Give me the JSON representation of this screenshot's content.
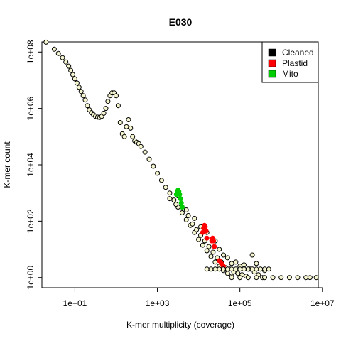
{
  "chart_data": {
    "type": "scatter",
    "title": "E030",
    "xlabel": "K-mer multiplicity (coverage)",
    "ylabel": "K-mer count",
    "log_x": true,
    "log_y": true,
    "xlim_log10": [
      0.2,
      6.9
    ],
    "ylim_log10": [
      -0.36,
      8.36
    ],
    "x_ticks": [
      {
        "exp": 1,
        "label": "1e+01"
      },
      {
        "exp": 3,
        "label": "1e+03"
      },
      {
        "exp": 5,
        "label": "1e+05"
      },
      {
        "exp": 7,
        "label": "1e+07"
      }
    ],
    "y_ticks": [
      {
        "exp": 0,
        "label": "1e+00"
      },
      {
        "exp": 2,
        "label": "1e+02"
      },
      {
        "exp": 4,
        "label": "1e+04"
      },
      {
        "exp": 6,
        "label": "1e+06"
      },
      {
        "exp": 8,
        "label": "1e+08"
      }
    ],
    "legend": {
      "position": "top-right",
      "entries": [
        {
          "label": "Cleaned",
          "color": "#000000"
        },
        {
          "label": "Plastid",
          "color": "#ff0000"
        },
        {
          "label": "Mito",
          "color": "#00cd00"
        }
      ]
    },
    "marker": "open-circle",
    "series": [
      {
        "name": "Cleaned",
        "color": "#000000",
        "points_log10": [
          [
            0.3,
            8.35
          ],
          [
            0.5,
            8.1
          ],
          [
            0.6,
            7.95
          ],
          [
            0.7,
            7.8
          ],
          [
            0.78,
            7.65
          ],
          [
            0.85,
            7.5
          ],
          [
            0.9,
            7.35
          ],
          [
            0.95,
            7.2
          ],
          [
            1.0,
            7.05
          ],
          [
            1.05,
            6.9
          ],
          [
            1.1,
            6.75
          ],
          [
            1.15,
            6.6
          ],
          [
            1.2,
            6.45
          ],
          [
            1.25,
            6.3
          ],
          [
            1.3,
            6.1
          ],
          [
            1.35,
            5.95
          ],
          [
            1.4,
            5.85
          ],
          [
            1.45,
            5.78
          ],
          [
            1.5,
            5.72
          ],
          [
            1.55,
            5.69
          ],
          [
            1.6,
            5.68
          ],
          [
            1.65,
            5.72
          ],
          [
            1.7,
            5.83
          ],
          [
            1.75,
            6.0
          ],
          [
            1.8,
            6.25
          ],
          [
            1.85,
            6.45
          ],
          [
            1.9,
            6.55
          ],
          [
            1.95,
            6.55
          ],
          [
            2.0,
            6.45
          ],
          [
            2.05,
            6.1
          ],
          [
            2.1,
            5.5
          ],
          [
            2.15,
            5.1
          ],
          [
            2.2,
            5.0
          ],
          [
            2.25,
            5.35
          ],
          [
            2.3,
            5.6
          ],
          [
            2.35,
            5.3
          ],
          [
            2.4,
            5.0
          ],
          [
            2.45,
            4.85
          ],
          [
            2.5,
            4.8
          ],
          [
            2.55,
            4.75
          ],
          [
            2.6,
            4.65
          ],
          [
            2.7,
            4.45
          ],
          [
            2.8,
            4.2
          ],
          [
            2.9,
            3.95
          ],
          [
            3.0,
            3.7
          ],
          [
            3.1,
            3.45
          ],
          [
            3.2,
            3.2
          ],
          [
            3.3,
            3.0
          ],
          [
            3.4,
            2.75
          ],
          [
            3.5,
            2.5
          ],
          [
            3.6,
            2.3
          ],
          [
            3.7,
            2.05
          ],
          [
            3.8,
            1.85
          ],
          [
            3.9,
            1.6
          ],
          [
            4.0,
            1.35
          ],
          [
            4.1,
            1.15
          ],
          [
            4.2,
            0.95
          ],
          [
            4.3,
            0.75
          ],
          [
            4.4,
            0.55
          ],
          [
            4.5,
            0.4
          ],
          [
            4.6,
            0.25
          ],
          [
            4.7,
            0.15
          ],
          [
            4.8,
            0.05
          ],
          [
            3.5,
            2.9
          ],
          [
            3.6,
            2.5
          ],
          [
            3.75,
            2.2
          ],
          [
            3.85,
            1.9
          ],
          [
            3.95,
            1.7
          ],
          [
            4.05,
            1.5
          ],
          [
            4.15,
            1.3
          ],
          [
            4.25,
            1.1
          ],
          [
            4.35,
            0.9
          ],
          [
            4.45,
            0.7
          ],
          [
            4.55,
            0.55
          ],
          [
            4.65,
            0.35
          ],
          [
            4.75,
            0.3
          ],
          [
            4.85,
            0.2
          ],
          [
            4.95,
            0.15
          ],
          [
            5.05,
            0.1
          ],
          [
            5.15,
            0.05
          ],
          [
            5.25,
            0.3
          ],
          [
            5.35,
            0.2
          ],
          [
            5.45,
            0.1
          ],
          [
            5.55,
            0.0
          ],
          [
            4.6,
            0.8
          ],
          [
            4.9,
            0.55
          ],
          [
            5.1,
            0.45
          ],
          [
            5.3,
            0.8
          ],
          [
            5.4,
            0.5
          ],
          [
            3.3,
            2.8
          ],
          [
            3.45,
            2.6
          ],
          [
            3.7,
            2.4
          ],
          [
            3.9,
            2.1
          ],
          [
            4.05,
            1.8
          ],
          [
            4.2,
            1.6
          ],
          [
            4.4,
            1.3
          ],
          [
            4.5,
            1.0
          ],
          [
            4.7,
            0.7
          ],
          [
            4.8,
            0.5
          ],
          [
            5.0,
            0.4
          ],
          [
            5.2,
            0.3
          ],
          [
            5.6,
            0.25
          ]
        ]
      },
      {
        "name": "Plastid",
        "color": "#ff0000",
        "points_log10": [
          [
            4.1,
            1.6
          ],
          [
            4.12,
            1.75
          ],
          [
            4.14,
            1.85
          ],
          [
            4.16,
            1.8
          ],
          [
            4.18,
            1.65
          ],
          [
            4.2,
            1.4
          ],
          [
            4.32,
            1.3
          ],
          [
            4.34,
            1.4
          ],
          [
            4.36,
            1.3
          ],
          [
            4.38,
            1.1
          ],
          [
            4.5,
            0.6
          ],
          [
            4.55,
            0.5
          ],
          [
            4.6,
            0.4
          ]
        ]
      },
      {
        "name": "Mito",
        "color": "#00cd00",
        "points_log10": [
          [
            3.46,
            2.95
          ],
          [
            3.48,
            3.05
          ],
          [
            3.5,
            3.1
          ],
          [
            3.52,
            3.05
          ],
          [
            3.54,
            2.95
          ],
          [
            3.56,
            2.8
          ],
          [
            3.58,
            2.65
          ],
          [
            3.6,
            2.5
          ]
        ]
      },
      {
        "name": "",
        "color": "#000000",
        "note_ref": "baseline",
        "points_log10": [
          [
            4.2,
            0.3
          ],
          [
            4.3,
            0.3
          ],
          [
            4.4,
            0.3
          ],
          [
            4.5,
            0.3
          ],
          [
            4.6,
            0.3
          ],
          [
            4.7,
            0.3
          ],
          [
            4.8,
            0.3
          ],
          [
            4.9,
            0.3
          ],
          [
            5.0,
            0.3
          ],
          [
            5.1,
            0.3
          ],
          [
            5.2,
            0.3
          ],
          [
            5.3,
            0.3
          ],
          [
            5.4,
            0.3
          ],
          [
            5.5,
            0.3
          ],
          [
            5.6,
            0.3
          ],
          [
            5.7,
            0.3
          ],
          [
            4.8,
            0.0
          ],
          [
            5.0,
            0.0
          ],
          [
            5.2,
            0.0
          ],
          [
            5.4,
            0.0
          ],
          [
            5.6,
            0.0
          ],
          [
            5.8,
            0.0
          ],
          [
            6.0,
            0.0
          ],
          [
            6.2,
            0.0
          ],
          [
            6.4,
            0.0
          ],
          [
            6.6,
            0.0
          ],
          [
            6.7,
            0.0
          ],
          [
            6.85,
            0.0
          ]
        ]
      }
    ]
  }
}
